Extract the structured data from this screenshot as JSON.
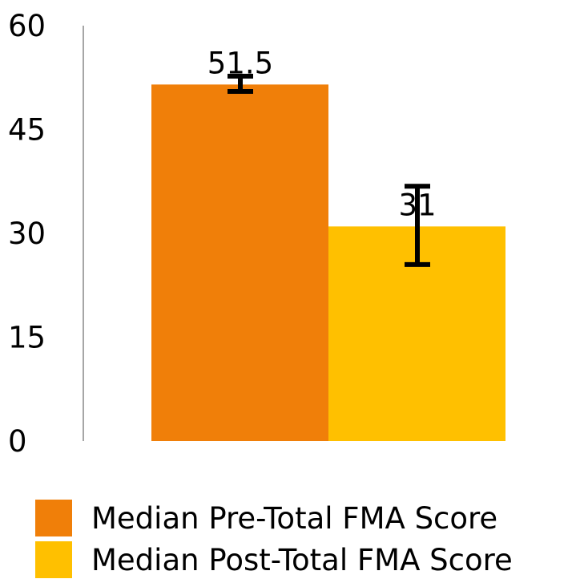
{
  "chart_data": {
    "type": "bar",
    "categories": [
      ""
    ],
    "series": [
      {
        "name": "Median Pre-Total FMA Score",
        "values": [
          51.5
        ],
        "error": [
          [
            50.5,
            52.7
          ]
        ],
        "color": "#F07F09",
        "label": "51.5"
      },
      {
        "name": "Median Post-Total FMA Score",
        "values": [
          31
        ],
        "error": [
          [
            25.5,
            36.8
          ]
        ],
        "color": "#FFC000",
        "label": "31"
      }
    ],
    "ylim": [
      0,
      60
    ],
    "yticks": [
      "0",
      "15",
      "30",
      "45",
      "60"
    ],
    "title": "",
    "xlabel": "",
    "ylabel": "",
    "grid": false,
    "legend": "bottom"
  }
}
